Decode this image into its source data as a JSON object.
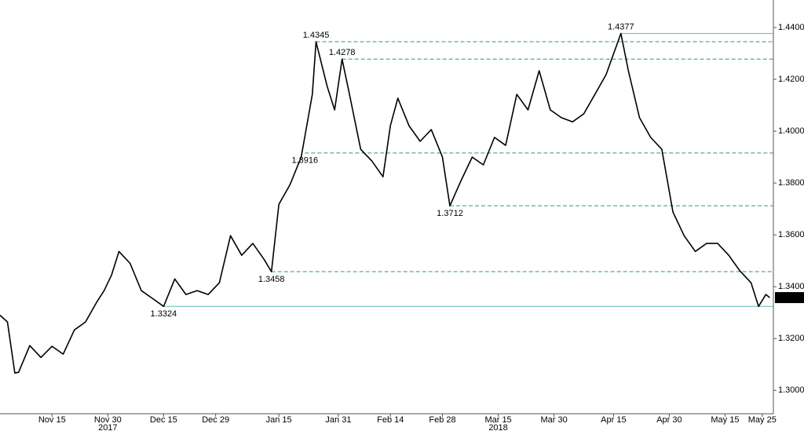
{
  "chart_data": {
    "type": "line",
    "x": [
      "2017-11-01",
      "2017-11-03",
      "2017-11-05",
      "2017-11-06",
      "2017-11-09",
      "2017-11-12",
      "2017-11-15",
      "2017-11-18",
      "2017-11-21",
      "2017-11-24",
      "2017-11-27",
      "2017-11-29",
      "2017-12-01",
      "2017-12-03",
      "2017-12-06",
      "2017-12-09",
      "2017-12-12",
      "2017-12-15",
      "2017-12-18",
      "2017-12-21",
      "2017-12-24",
      "2017-12-27",
      "2017-12-30",
      "2018-01-02",
      "2018-01-05",
      "2018-01-08",
      "2018-01-11",
      "2018-01-13",
      "2018-01-15",
      "2018-01-18",
      "2018-01-21",
      "2018-01-24",
      "2018-01-25",
      "2018-01-28",
      "2018-01-30",
      "2018-02-01",
      "2018-02-03",
      "2018-02-06",
      "2018-02-09",
      "2018-02-12",
      "2018-02-14",
      "2018-02-16",
      "2018-02-19",
      "2018-02-22",
      "2018-02-25",
      "2018-02-28",
      "2018-03-02",
      "2018-03-05",
      "2018-03-08",
      "2018-03-11",
      "2018-03-14",
      "2018-03-17",
      "2018-03-20",
      "2018-03-23",
      "2018-03-26",
      "2018-03-29",
      "2018-04-01",
      "2018-04-04",
      "2018-04-07",
      "2018-04-10",
      "2018-04-13",
      "2018-04-17",
      "2018-04-19",
      "2018-04-22",
      "2018-04-25",
      "2018-04-28",
      "2018-05-01",
      "2018-05-04",
      "2018-05-07",
      "2018-05-10",
      "2018-05-13",
      "2018-05-16",
      "2018-05-19",
      "2018-05-22",
      "2018-05-24",
      "2018-05-26",
      "2018-05-27"
    ],
    "values": [
      1.329,
      1.3264,
      1.3067,
      1.307,
      1.3173,
      1.3127,
      1.317,
      1.314,
      1.3233,
      1.3264,
      1.334,
      1.3385,
      1.3445,
      1.3536,
      1.349,
      1.3385,
      1.3355,
      1.3324,
      1.343,
      1.337,
      1.3385,
      1.337,
      1.3415,
      1.3597,
      1.3521,
      1.3567,
      1.3506,
      1.3458,
      1.3718,
      1.3794,
      1.39,
      1.4142,
      1.4345,
      1.4173,
      1.4082,
      1.4278,
      1.4142,
      1.393,
      1.3885,
      1.3824,
      1.4021,
      1.4127,
      1.4021,
      1.3961,
      1.4006,
      1.39,
      1.3712,
      1.3809,
      1.39,
      1.387,
      1.3976,
      1.3945,
      1.4142,
      1.4082,
      1.4233,
      1.4082,
      1.4052,
      1.4036,
      1.4067,
      1.4142,
      1.4218,
      1.4377,
      1.4233,
      1.4052,
      1.3976,
      1.393,
      1.3688,
      1.3597,
      1.3536,
      1.3567,
      1.3567,
      1.3521,
      1.3461,
      1.3415,
      1.3324,
      1.337,
      1.3358
    ],
    "color": "#000000",
    "xlim": [
      "2017-11-01",
      "2018-05-28"
    ],
    "xticks": [
      {
        "value": "2017-11-15",
        "label": "Nov 15"
      },
      {
        "value": "2017-11-30",
        "label": "Nov 30"
      },
      {
        "value": "2017-12-15",
        "label": "Dec 15"
      },
      {
        "value": "2017-12-29",
        "label": "Dec 29"
      },
      {
        "value": "2018-01-15",
        "label": "Jan 15"
      },
      {
        "value": "2018-01-31",
        "label": "Jan 31"
      },
      {
        "value": "2018-02-14",
        "label": "Feb 14"
      },
      {
        "value": "2018-02-28",
        "label": "Feb 28"
      },
      {
        "value": "2018-03-15",
        "label": "Mar 15"
      },
      {
        "value": "2018-03-30",
        "label": "Mar 30"
      },
      {
        "value": "2018-04-15",
        "label": "Apr 15"
      },
      {
        "value": "2018-04-30",
        "label": "Apr 30"
      },
      {
        "value": "2018-05-15",
        "label": "May 15"
      },
      {
        "value": "2018-05-25",
        "label": "May 25"
      }
    ],
    "year_labels": [
      {
        "value": "2017-11-30",
        "label": "2017"
      },
      {
        "value": "2018-03-15",
        "label": "2018"
      }
    ],
    "ylim": [
      1.291,
      1.4506
    ],
    "yticks": [
      {
        "value": 1.3,
        "label": "1.3000"
      },
      {
        "value": 1.32,
        "label": "1.3200"
      },
      {
        "value": 1.34,
        "label": "1.3400"
      },
      {
        "value": 1.36,
        "label": "1.3600"
      },
      {
        "value": 1.38,
        "label": "1.3800"
      },
      {
        "value": 1.4,
        "label": "1.4000"
      },
      {
        "value": 1.42,
        "label": "1.4200"
      },
      {
        "value": 1.44,
        "label": "1.4400"
      }
    ],
    "levels": [
      {
        "value": 1.4377,
        "x": "2018-04-17",
        "style": "solid",
        "label_side": "above"
      },
      {
        "value": 1.4345,
        "x": "2018-01-25",
        "style": "dashed",
        "label_side": "above"
      },
      {
        "value": 1.4278,
        "x": "2018-02-01",
        "style": "dashed",
        "label_side": "above"
      },
      {
        "value": 1.3916,
        "x": "2018-01-22",
        "style": "dashed",
        "label_side": "below"
      },
      {
        "value": 1.3712,
        "x": "2018-03-02",
        "style": "dashed",
        "label_side": "below"
      },
      {
        "value": 1.3458,
        "x": "2018-01-13",
        "style": "dashed",
        "label_side": "below"
      },
      {
        "value": 1.3324,
        "x": "2017-12-15",
        "style": "solid",
        "label_side": "below"
      }
    ],
    "last_value": 1.3358
  }
}
